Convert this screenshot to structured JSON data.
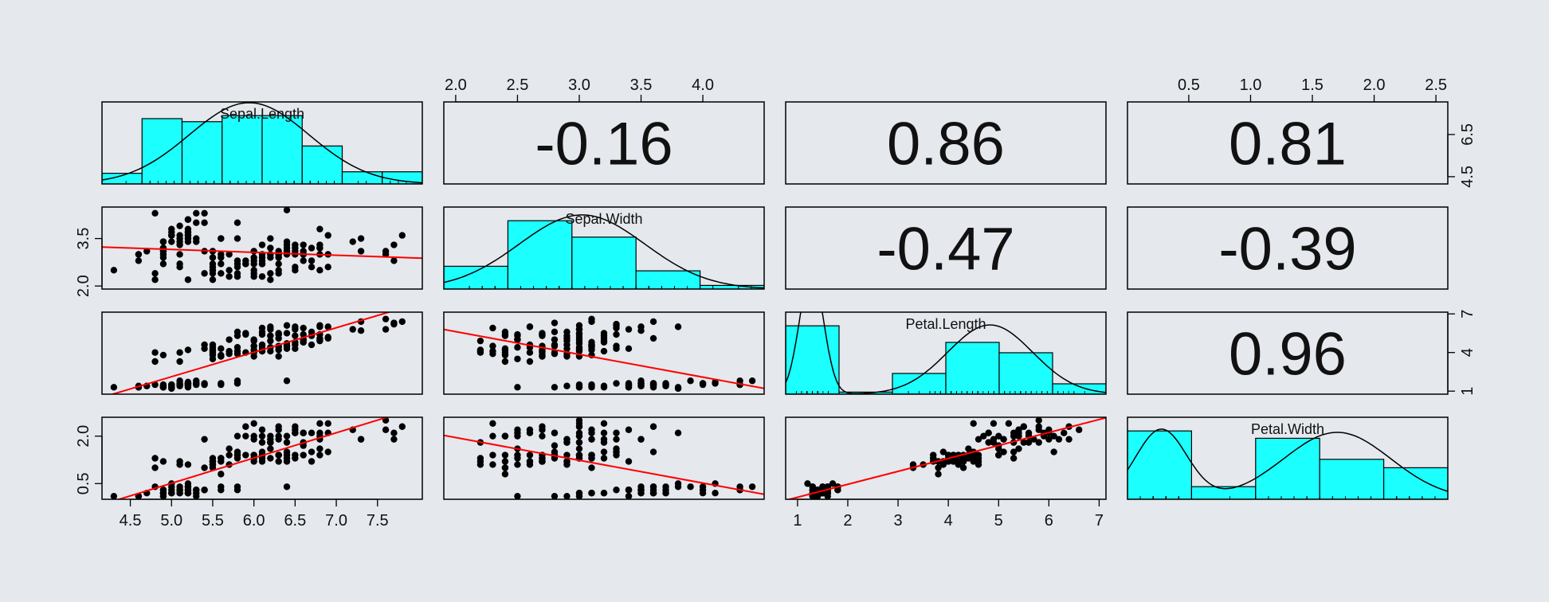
{
  "chart_data": {
    "type": "scatter",
    "title": "",
    "variables": [
      "Sepal.Length",
      "Sepal.Width",
      "Petal.Length",
      "Petal.Width"
    ],
    "ranges": {
      "Sepal.Length": [
        4.3,
        7.9
      ],
      "Sepal.Width": [
        2.0,
        4.4
      ],
      "Petal.Length": [
        1.0,
        6.9
      ],
      "Petal.Width": [
        0.1,
        2.5
      ]
    },
    "ticks": {
      "Sepal.Length": {
        "bottom": [
          "4.5",
          "5.0",
          "5.5",
          "6.0",
          "6.5",
          "7.0",
          "7.5"
        ],
        "right": [
          "4.5",
          "6.5"
        ]
      },
      "Sepal.Width": {
        "top": [
          "2.0",
          "2.5",
          "3.0",
          "3.5",
          "4.0"
        ],
        "left": [
          "2.0",
          "3.5"
        ]
      },
      "Petal.Length": {
        "bottom": [
          "1",
          "2",
          "3",
          "4",
          "5",
          "6",
          "7"
        ],
        "right": [
          "1",
          "4",
          "7"
        ]
      },
      "Petal.Width": {
        "top": [
          "0.5",
          "1.0",
          "1.5",
          "2.0",
          "2.5"
        ],
        "left": [
          "0.5",
          "2.0"
        ]
      }
    },
    "correlations": [
      {
        "row": 0,
        "col": 1,
        "value": "-0.16"
      },
      {
        "row": 0,
        "col": 2,
        "value": "0.86"
      },
      {
        "row": 0,
        "col": 3,
        "value": "0.81"
      },
      {
        "row": 1,
        "col": 2,
        "value": "-0.47"
      },
      {
        "row": 1,
        "col": 3,
        "value": "-0.39"
      },
      {
        "row": 2,
        "col": 3,
        "value": "0.96"
      }
    ],
    "histograms": [
      {
        "variable": "Sepal.Length",
        "breaks": [
          4.0,
          4.5,
          5.0,
          5.5,
          6.0,
          6.5,
          7.0,
          7.5,
          8.0
        ],
        "density": [
          0.07,
          0.43,
          0.41,
          0.45,
          0.45,
          0.25,
          0.08,
          0.08
        ]
      },
      {
        "variable": "Sepal.Width",
        "breaks": [
          2.0,
          2.5,
          3.0,
          3.5,
          4.0,
          4.5
        ],
        "density": [
          0.25,
          0.75,
          0.57,
          0.2,
          0.04
        ]
      },
      {
        "variable": "Petal.Length",
        "breaks": [
          1,
          2,
          3,
          4,
          5,
          6,
          7
        ],
        "density": [
          0.33,
          0.01,
          0.1,
          0.25,
          0.2,
          0.05
        ]
      },
      {
        "variable": "Petal.Width",
        "breaks": [
          0,
          0.5,
          1.0,
          1.5,
          2.0,
          2.5
        ],
        "density": [
          0.65,
          0.12,
          0.58,
          0.38,
          0.3
        ]
      }
    ],
    "fill_color": "#1cffff",
    "line_color": "#ff0000",
    "point_color": "#000000",
    "grid": false
  }
}
